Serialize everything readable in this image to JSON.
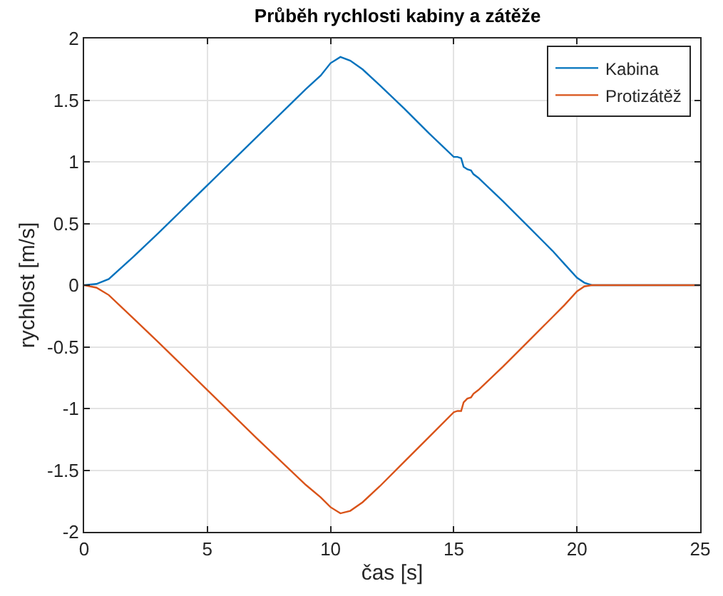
{
  "chart_data": {
    "type": "line",
    "title": "Průběh rychlosti kabiny a zátěže",
    "xlabel": "čas [s]",
    "ylabel": "rychlost [m/s]",
    "xlim": [
      0,
      25
    ],
    "xticks": [
      0,
      5,
      10,
      15,
      20,
      25
    ],
    "ylim": [
      -2,
      2
    ],
    "yticks": [
      -2,
      -1.5,
      -1,
      -0.5,
      0,
      0.5,
      1,
      1.5,
      2
    ],
    "grid": true,
    "legend": "top right",
    "marker": "none",
    "line_style": "solid",
    "x": [
      0,
      0.5,
      1,
      2,
      3,
      5,
      7,
      9,
      9.6,
      10,
      10.4,
      10.8,
      11.3,
      12,
      13,
      14,
      15,
      15.15,
      15.3,
      15.4,
      15.55,
      15.7,
      15.8,
      16,
      17,
      18,
      19,
      19.5,
      20,
      20.3,
      20.6,
      25
    ],
    "series": [
      {
        "name": "Kabina",
        "color": "#0072bd",
        "values": [
          0,
          0.01,
          0.05,
          0.23,
          0.42,
          0.81,
          1.2,
          1.59,
          1.7,
          1.8,
          1.85,
          1.82,
          1.75,
          1.62,
          1.43,
          1.23,
          1.04,
          1.04,
          1.03,
          0.96,
          0.94,
          0.93,
          0.9,
          0.87,
          0.68,
          0.48,
          0.28,
          0.17,
          0.06,
          0.02,
          0,
          0
        ]
      },
      {
        "name": "Protizátěž",
        "color": "#d95319",
        "values": [
          0,
          -0.02,
          -0.08,
          -0.27,
          -0.46,
          -0.85,
          -1.24,
          -1.62,
          -1.72,
          -1.8,
          -1.85,
          -1.83,
          -1.76,
          -1.63,
          -1.43,
          -1.23,
          -1.03,
          -1.02,
          -1.02,
          -0.95,
          -0.92,
          -0.91,
          -0.88,
          -0.85,
          -0.66,
          -0.46,
          -0.26,
          -0.16,
          -0.05,
          -0.01,
          0,
          0
        ]
      }
    ]
  }
}
